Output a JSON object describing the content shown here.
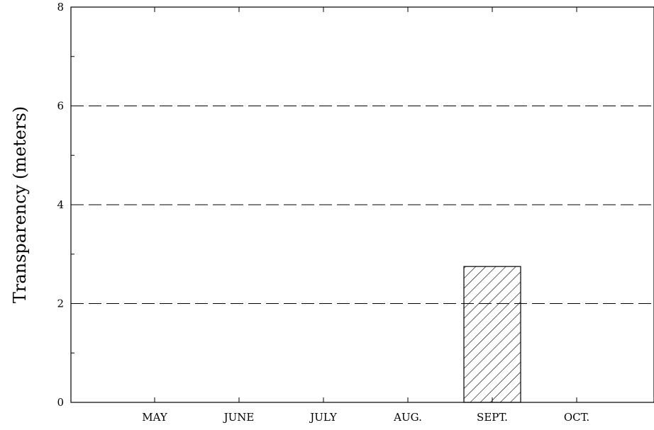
{
  "chart_data": {
    "type": "bar",
    "title": "",
    "xlabel": "",
    "ylabel": "Transparency (meters)",
    "categories": [
      "MAY",
      "JUNE",
      "JULY",
      "AUG.",
      "SEPT.",
      "OCT."
    ],
    "values": [
      null,
      null,
      null,
      null,
      2.75,
      null
    ],
    "ylim": [
      0,
      8
    ],
    "yticks": [
      0,
      2,
      4,
      6,
      8
    ],
    "grid": "dashed horizontal at 2, 4, 6",
    "bar_fill": "diagonal-hatch",
    "legend": "none"
  }
}
